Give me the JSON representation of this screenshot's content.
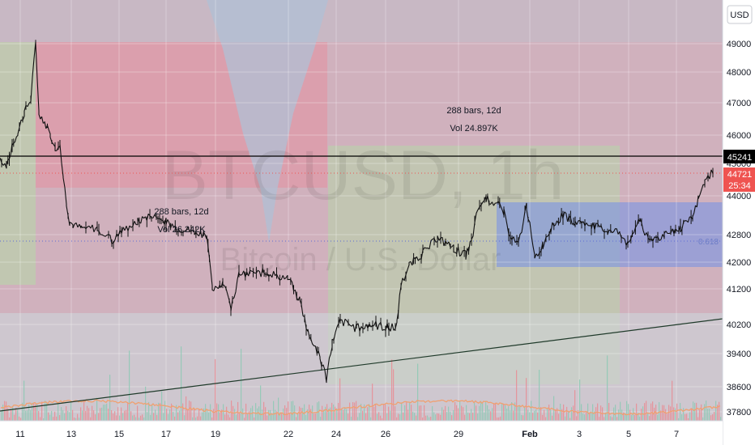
{
  "chart_data": {
    "type": "candlestick",
    "symbol": "BTCUSD, 1h",
    "description": "Bitcoin / U.S. Dollar",
    "currency_button": "USD",
    "ylim": [
      37500,
      50000
    ],
    "y_ticks": [
      37800,
      38600,
      39400,
      40200,
      41200,
      42000,
      42800,
      44000,
      45000,
      46000,
      47000,
      48000,
      49000
    ],
    "x_ticks": [
      "11",
      "13",
      "15",
      "17",
      "19",
      "22",
      "24",
      "26",
      "29",
      "Feb",
      "3",
      "5",
      "7"
    ],
    "price_labels": [
      {
        "value": "45241",
        "color": "#000000"
      },
      {
        "value": "44721",
        "color": "#ef5350"
      },
      {
        "value": "25:34",
        "color": "#ef5350"
      }
    ],
    "fib_label": "0.618",
    "annotations": [
      {
        "lines": [
          "288 bars, 12d",
          "Vol 24.897K"
        ]
      },
      {
        "lines": [
          "288 bars, 12d",
          "Vol 26.242K"
        ]
      }
    ],
    "price_path": [
      [
        0,
        45200
      ],
      [
        8,
        44900
      ],
      [
        15,
        45600
      ],
      [
        22,
        46100
      ],
      [
        30,
        46700
      ],
      [
        38,
        47100
      ],
      [
        44,
        49000
      ],
      [
        48,
        46700
      ],
      [
        55,
        46400
      ],
      [
        62,
        46000
      ],
      [
        68,
        45500
      ],
      [
        74,
        45700
      ],
      [
        78,
        44600
      ],
      [
        82,
        43800
      ],
      [
        86,
        43200
      ],
      [
        90,
        43100
      ],
      [
        100,
        43000
      ],
      [
        120,
        43000
      ],
      [
        140,
        42600
      ],
      [
        150,
        42900
      ],
      [
        170,
        43200
      ],
      [
        185,
        43400
      ],
      [
        205,
        43200
      ],
      [
        220,
        43000
      ],
      [
        240,
        42900
      ],
      [
        255,
        42800
      ],
      [
        262,
        41200
      ],
      [
        275,
        41400
      ],
      [
        285,
        40700
      ],
      [
        295,
        41600
      ],
      [
        330,
        41700
      ],
      [
        355,
        41500
      ],
      [
        370,
        40900
      ],
      [
        380,
        40000
      ],
      [
        395,
        39300
      ],
      [
        403,
        38800
      ],
      [
        410,
        39700
      ],
      [
        420,
        40300
      ],
      [
        440,
        40100
      ],
      [
        460,
        40200
      ],
      [
        480,
        40100
      ],
      [
        490,
        40200
      ],
      [
        495,
        41300
      ],
      [
        505,
        41900
      ],
      [
        520,
        42200
      ],
      [
        540,
        42700
      ],
      [
        560,
        42400
      ],
      [
        575,
        42200
      ],
      [
        582,
        42600
      ],
      [
        590,
        43600
      ],
      [
        600,
        43900
      ],
      [
        615,
        43700
      ],
      [
        622,
        43500
      ],
      [
        630,
        42700
      ],
      [
        640,
        42500
      ],
      [
        650,
        43700
      ],
      [
        660,
        42100
      ],
      [
        670,
        42500
      ],
      [
        680,
        43000
      ],
      [
        695,
        43400
      ],
      [
        710,
        43200
      ],
      [
        730,
        43100
      ],
      [
        750,
        42900
      ],
      [
        765,
        42900
      ],
      [
        775,
        42500
      ],
      [
        790,
        43300
      ],
      [
        800,
        42600
      ],
      [
        820,
        42800
      ],
      [
        840,
        43000
      ],
      [
        855,
        43300
      ],
      [
        862,
        43900
      ],
      [
        870,
        44400
      ],
      [
        880,
        44800
      ]
    ]
  }
}
